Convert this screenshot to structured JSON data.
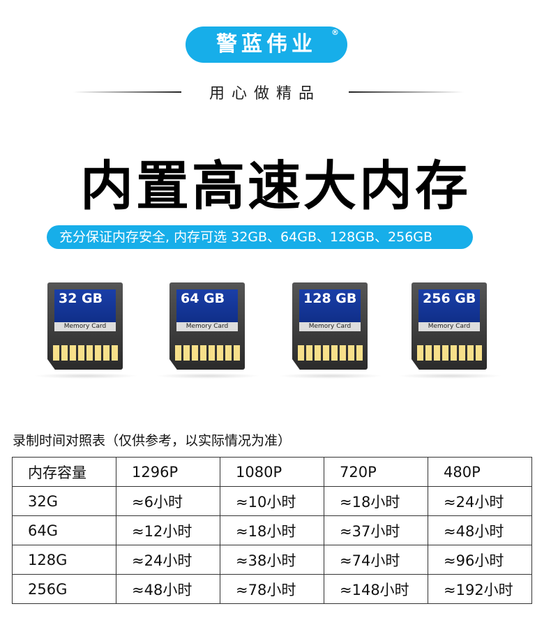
{
  "brand": {
    "name": "警蓝伟业",
    "reg": "®"
  },
  "slogan": "用心做精品",
  "headline": "内置高速大内存",
  "banner": "充分保证内存安全, 内存可选 32GB、64GB、128GB、256GB",
  "cards": [
    {
      "capacity": "32 GB",
      "label": "Memory Card"
    },
    {
      "capacity": "64 GB",
      "label": "Memory Card"
    },
    {
      "capacity": "128 GB",
      "label": "Memory Card"
    },
    {
      "capacity": "256 GB",
      "label": "Memory Card"
    }
  ],
  "table": {
    "title": "录制时间对照表（仅供参考，以实际情况为准）",
    "headers": [
      "内存容量",
      "1296P",
      "1080P",
      "720P",
      "480P"
    ],
    "rows": [
      [
        "32G",
        "≈6小时",
        "≈10小时",
        "≈18小时",
        "≈24小时"
      ],
      [
        "64G",
        "≈12小时",
        "≈18小时",
        "≈37小时",
        "≈48小时"
      ],
      [
        "128G",
        "≈24小时",
        "≈38小时",
        "≈74小时",
        "≈96小时"
      ],
      [
        "256G",
        "≈48小时",
        "≈78小时",
        "≈148小时",
        "≈192小时"
      ]
    ]
  },
  "colors": {
    "accent": "#17aee9"
  }
}
